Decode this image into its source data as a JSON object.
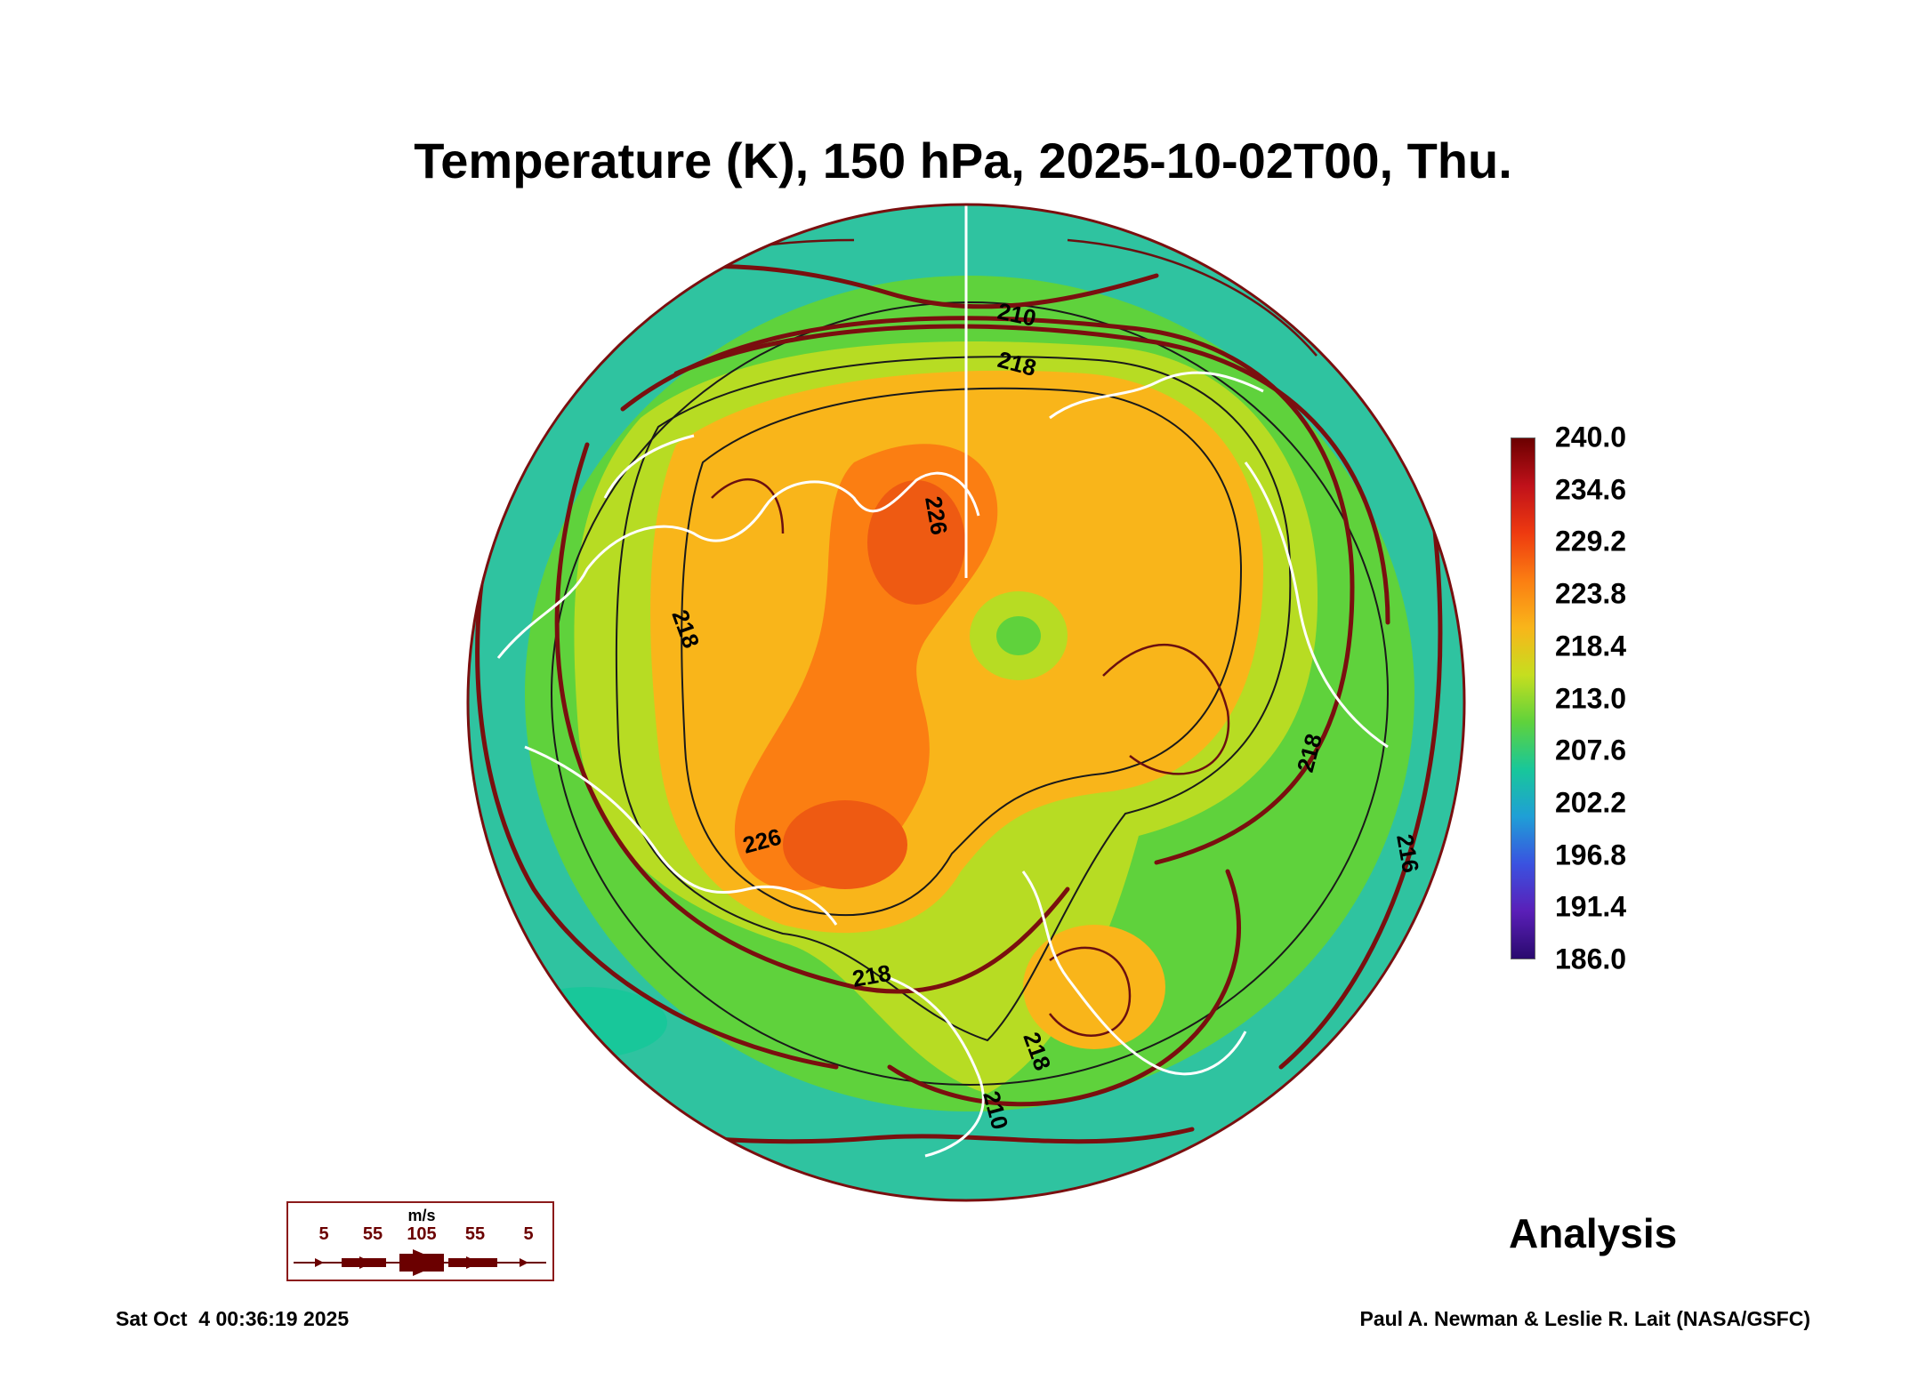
{
  "title": "Temperature (K), 150 hPa, 2025-10-02T00, Thu.",
  "colorbar": {
    "labels": [
      "240.0",
      "234.6",
      "229.2",
      "223.8",
      "218.4",
      "213.0",
      "207.6",
      "202.2",
      "196.8",
      "191.4",
      "186.0"
    ],
    "colors_top_to_bottom": [
      "#6b0000",
      "#c0111a",
      "#ee3a10",
      "#fb7e12",
      "#f9b51a",
      "#c6de1f",
      "#5fd23c",
      "#18c79a",
      "#1f9fd6",
      "#3a52e0",
      "#5a1fb8",
      "#2a0a6e"
    ]
  },
  "map": {
    "contour_labels": [
      "210",
      "218",
      "218",
      "226",
      "226",
      "218",
      "218",
      "218",
      "210",
      "216"
    ],
    "colors": {
      "ocean_outer": "#2fc3a0",
      "ring_mid": "#5fd23c",
      "ring_inner": "#b7dc23",
      "warm_core": "#f9b51a",
      "hot_core": "#fb7e12",
      "hottest": "#ee5a12",
      "streamline": "#7a0f0f",
      "coastline": "#ffffff",
      "contour": "#1a1a1a"
    }
  },
  "wind_key": {
    "unit": "m/s",
    "labels": [
      "5",
      "55",
      "105",
      "55",
      "5"
    ]
  },
  "analysis_label": "Analysis",
  "footer": {
    "date": "Sat Oct  4 00:36:19 2025",
    "credit": "Paul A. Newman & Leslie R. Lait (NASA/GSFC)"
  }
}
